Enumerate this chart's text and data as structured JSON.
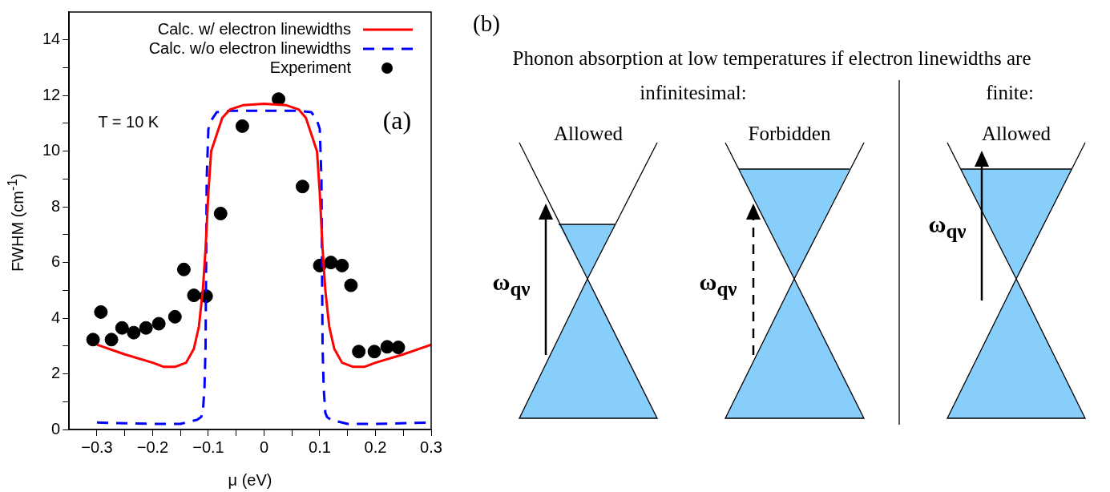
{
  "chart_data": [
    {
      "type": "line",
      "xlabel": "μ (eV)",
      "ylabel": "FWHM (cm$^{-1}$)",
      "xlim": [
        -0.35,
        0.3
      ],
      "ylim": [
        0,
        15
      ],
      "xticks": [
        {
          "value": -0.3,
          "label": "−0.3"
        },
        {
          "value": -0.25,
          "label": null
        },
        {
          "value": -0.2,
          "label": "−0.2"
        },
        {
          "value": -0.15,
          "label": null
        },
        {
          "value": -0.1,
          "label": "−0.1"
        },
        {
          "value": -0.05,
          "label": null
        },
        0,
        {
          "value": 0.05,
          "label": null
        },
        0.1,
        {
          "value": 0.15,
          "label": null
        },
        0.2,
        {
          "value": 0.25,
          "label": null
        },
        0.3
      ],
      "yticks": [
        0,
        {
          "value": 1,
          "label": null
        },
        2,
        {
          "value": 3,
          "label": null
        },
        4,
        {
          "value": 5,
          "label": null
        },
        6,
        {
          "value": 7,
          "label": null
        },
        8,
        {
          "value": 9,
          "label": null
        },
        10,
        {
          "value": 11,
          "label": null
        },
        12,
        {
          "value": 13,
          "label": null
        },
        14
      ],
      "grid": false,
      "legend": "top right",
      "annotations": [
        "T = 10 K",
        "(a)"
      ],
      "series": [
        {
          "name": "Calc. w/ electron linewidths",
          "type": "line",
          "color": "#ff0000",
          "line_style": "solid",
          "marker": "none",
          "x": [
            -0.3,
            -0.25,
            -0.2,
            -0.18,
            -0.16,
            -0.14,
            -0.126,
            -0.117,
            -0.11,
            -0.105,
            -0.1,
            -0.095,
            -0.085,
            -0.075,
            -0.061,
            -0.038,
            0,
            0.04,
            0.062,
            0.075,
            0.085,
            0.095,
            0.1,
            0.105,
            0.11,
            0.117,
            0.126,
            0.14,
            0.16,
            0.18,
            0.2,
            0.25,
            0.3
          ],
          "values": [
            3.05,
            2.7,
            2.4,
            2.25,
            2.25,
            2.4,
            2.9,
            3.7,
            5.0,
            6.5,
            8.5,
            10.0,
            10.6,
            11.2,
            11.5,
            11.65,
            11.7,
            11.65,
            11.5,
            11.2,
            10.6,
            10.0,
            8.5,
            6.5,
            5.0,
            3.7,
            2.9,
            2.4,
            2.25,
            2.25,
            2.4,
            2.7,
            3.05
          ]
        },
        {
          "name": "Calc. w/o electron linewidths",
          "type": "line",
          "color": "#0000ff",
          "line_style": "dashed",
          "marker": "none",
          "x": [
            -0.3,
            -0.2,
            -0.15,
            -0.12,
            -0.113,
            -0.11,
            -0.107,
            -0.105,
            -0.104,
            -0.103,
            -0.1,
            -0.095,
            -0.085,
            -0.06,
            0,
            0.06,
            0.085,
            0.095,
            0.1,
            0.103,
            0.104,
            0.105,
            0.107,
            0.11,
            0.113,
            0.12,
            0.15,
            0.2,
            0.3
          ],
          "values": [
            0.25,
            0.2,
            0.2,
            0.35,
            0.45,
            0.6,
            1.5,
            3,
            6,
            9,
            10.8,
            11.1,
            11.4,
            11.45,
            11.45,
            11.45,
            11.4,
            11.1,
            10.8,
            9,
            6,
            3,
            1.5,
            0.6,
            0.45,
            0.35,
            0.2,
            0.2,
            0.25
          ]
        },
        {
          "name": "Experiment",
          "type": "scatter",
          "color": "#000000",
          "marker": "circle",
          "x": [
            -0.307,
            -0.293,
            -0.274,
            -0.255,
            -0.234,
            -0.212,
            -0.189,
            -0.16,
            -0.144,
            -0.126,
            -0.104,
            -0.078,
            -0.039,
            0.026,
            0.069,
            0.1,
            0.12,
            0.14,
            0.156,
            0.17,
            0.198,
            0.221,
            0.241
          ],
          "values": [
            3.23,
            4.22,
            3.23,
            3.65,
            3.48,
            3.65,
            3.8,
            4.05,
            5.75,
            4.82,
            4.79,
            7.76,
            10.9,
            11.87,
            8.73,
            5.89,
            6.0,
            5.89,
            5.18,
            2.8,
            2.8,
            2.97,
            2.95
          ]
        }
      ]
    },
    {
      "type": "other",
      "title": "(b)",
      "annotations": [
        "Phonon absorption at low temperatures if electron linewidths are",
        "infinitesimal:",
        "finite:",
        "Allowed",
        "Forbidden",
        "Allowed",
        "ω$_{qν}$",
        "ω$_{qν}$",
        "ω$_{qν}$"
      ]
    }
  ]
}
